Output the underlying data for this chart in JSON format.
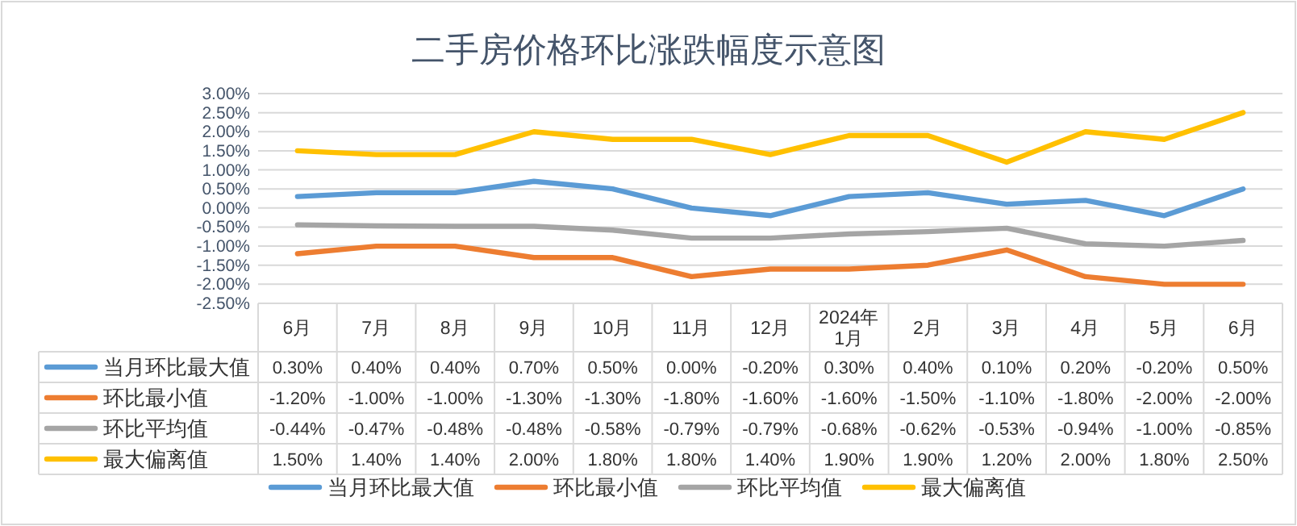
{
  "chart_data": {
    "type": "line",
    "title": "二手房价格环比涨跌幅度示意图",
    "categories": [
      "6月",
      "7月",
      "8月",
      "9月",
      "10月",
      "11月",
      "12月",
      "2024年1月",
      "2月",
      "3月",
      "4月",
      "5月",
      "6月"
    ],
    "series": [
      {
        "name": "当月环比最大值",
        "color": "#5b9bd5",
        "values": [
          0.3,
          0.4,
          0.4,
          0.7,
          0.5,
          0.0,
          -0.2,
          0.3,
          0.4,
          0.1,
          0.2,
          -0.2,
          0.5
        ],
        "value_labels": [
          "0.30%",
          "0.40%",
          "0.40%",
          "0.70%",
          "0.50%",
          "0.00%",
          "-0.20%",
          "0.30%",
          "0.40%",
          "0.10%",
          "0.20%",
          "-0.20%",
          "0.50%"
        ]
      },
      {
        "name": "环比最小值",
        "color": "#ed7d31",
        "values": [
          -1.2,
          -1.0,
          -1.0,
          -1.3,
          -1.3,
          -1.8,
          -1.6,
          -1.6,
          -1.5,
          -1.1,
          -1.8,
          -2.0,
          -2.0
        ],
        "value_labels": [
          "-1.20%",
          "-1.00%",
          "-1.00%",
          "-1.30%",
          "-1.30%",
          "-1.80%",
          "-1.60%",
          "-1.60%",
          "-1.50%",
          "-1.10%",
          "-1.80%",
          "-2.00%",
          "-2.00%"
        ]
      },
      {
        "name": "环比平均值",
        "color": "#a5a5a5",
        "values": [
          -0.44,
          -0.47,
          -0.48,
          -0.48,
          -0.58,
          -0.79,
          -0.79,
          -0.68,
          -0.62,
          -0.53,
          -0.94,
          -1.0,
          -0.85
        ],
        "value_labels": [
          "-0.44%",
          "-0.47%",
          "-0.48%",
          "-0.48%",
          "-0.58%",
          "-0.79%",
          "-0.79%",
          "-0.68%",
          "-0.62%",
          "-0.53%",
          "-0.94%",
          "-1.00%",
          "-0.85%"
        ]
      },
      {
        "name": "最大偏离值",
        "color": "#ffc000",
        "values": [
          1.5,
          1.4,
          1.4,
          2.0,
          1.8,
          1.8,
          1.4,
          1.9,
          1.9,
          1.2,
          2.0,
          1.8,
          2.5
        ],
        "value_labels": [
          "1.50%",
          "1.40%",
          "1.40%",
          "2.00%",
          "1.80%",
          "1.80%",
          "1.40%",
          "1.90%",
          "1.90%",
          "1.20%",
          "2.00%",
          "1.80%",
          "2.50%"
        ]
      }
    ],
    "ylim": [
      -2.5,
      3.0
    ],
    "yticks": [
      {
        "value": 3.0,
        "label": "3.00%"
      },
      {
        "value": 2.5,
        "label": "2.50%"
      },
      {
        "value": 2.0,
        "label": "2.00%"
      },
      {
        "value": 1.5,
        "label": "1.50%"
      },
      {
        "value": 1.0,
        "label": "1.00%"
      },
      {
        "value": 0.5,
        "label": "0.50%"
      },
      {
        "value": 0.0,
        "label": "0.00%"
      },
      {
        "value": -0.5,
        "label": "-0.50%"
      },
      {
        "value": -1.0,
        "label": "-1.00%"
      },
      {
        "value": -1.5,
        "label": "-1.50%"
      },
      {
        "value": -2.0,
        "label": "-2.00%"
      },
      {
        "value": -2.5,
        "label": "-2.50%"
      }
    ],
    "grid": "y",
    "legend": "bottom"
  }
}
